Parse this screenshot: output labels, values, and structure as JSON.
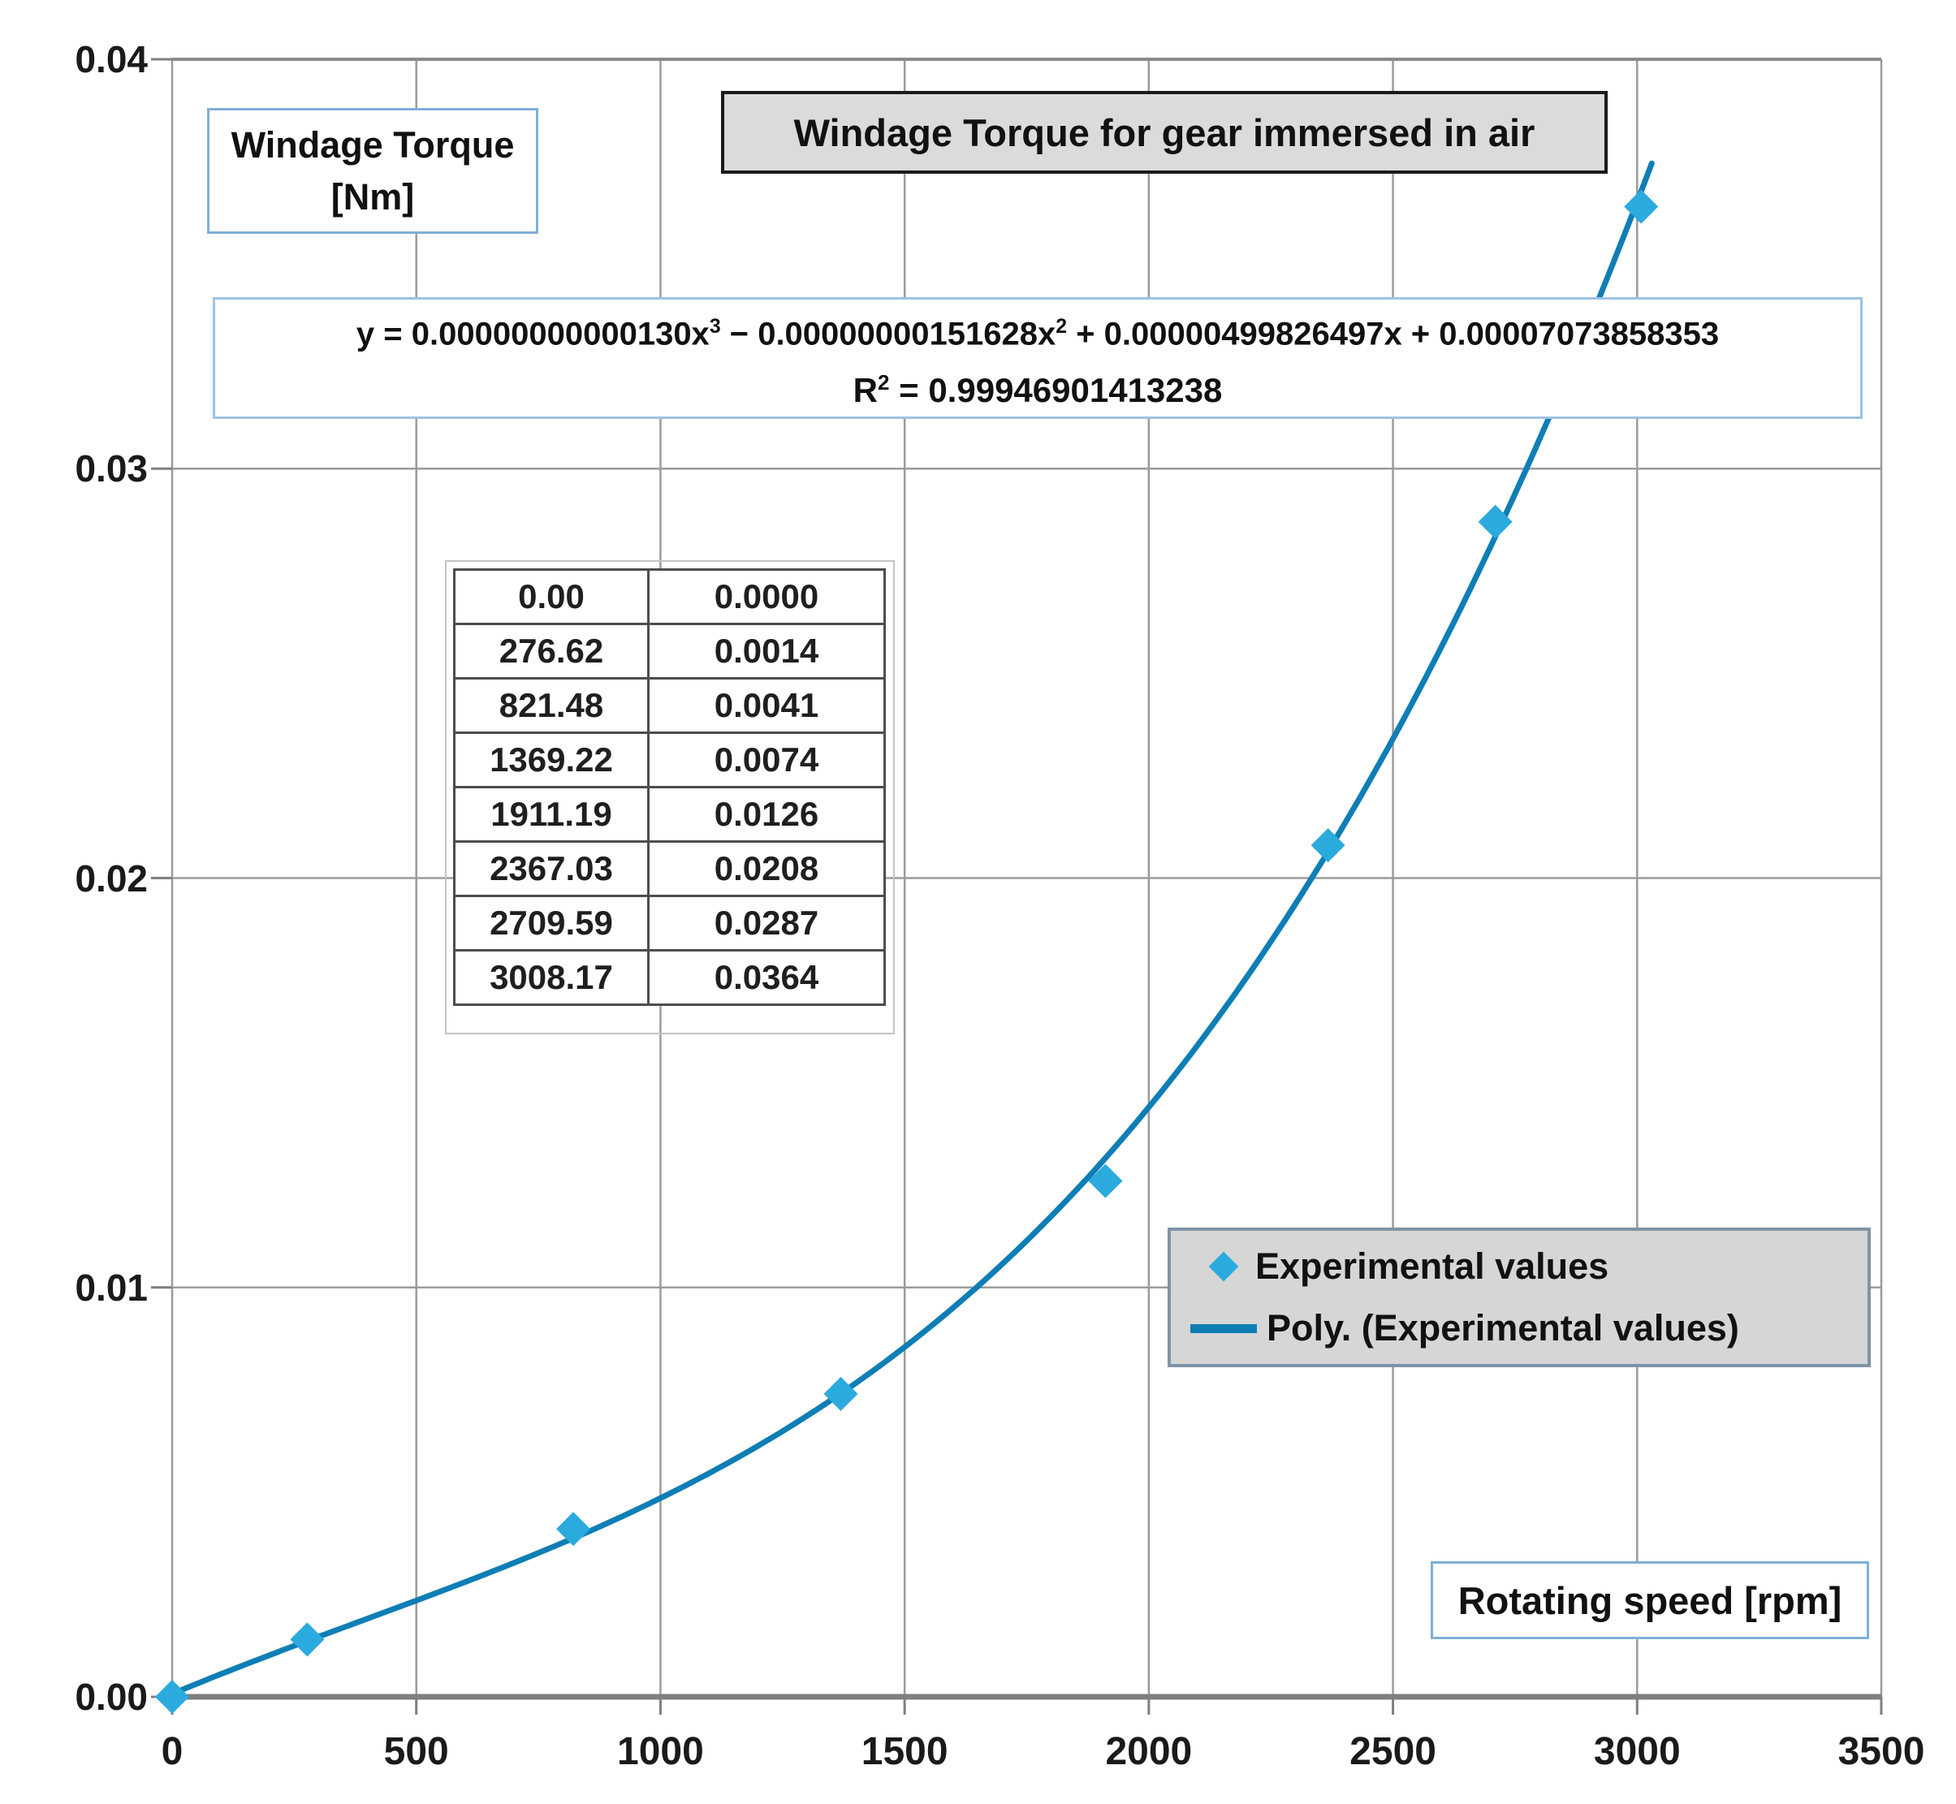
{
  "chart_data": {
    "type": "scatter",
    "title": "Windage Torque for gear immersed in air",
    "ylabel_line1": "Windage Torque",
    "ylabel_line2": "[Nm]",
    "xlabel": "Rotating speed  [rpm]",
    "xlim": [
      0,
      3500
    ],
    "ylim": [
      0,
      0.04
    ],
    "x_ticks": [
      "0",
      "500",
      "1000",
      "1500",
      "2000",
      "2500",
      "3000",
      "3500"
    ],
    "y_ticks": [
      "0.00",
      "0.01",
      "0.02",
      "0.03",
      "0.04"
    ],
    "grid": "both",
    "legend_position": "inside-right",
    "series": [
      {
        "name": "Experimental values",
        "type": "scatter",
        "marker": "diamond",
        "color": "#2BAADE",
        "x": [
          0,
          276.62,
          821.48,
          1369.22,
          1911.19,
          2367.03,
          2709.59,
          3008.17
        ],
        "y": [
          0.0,
          0.0014,
          0.0041,
          0.0074,
          0.0126,
          0.0208,
          0.0287,
          0.0364
        ]
      },
      {
        "name": "Poly. (Experimental values)",
        "type": "line",
        "color": "#0E7EB5",
        "poly_coefficients": [
          1.3e-12,
          -1.51628e-09,
          4.99826497e-06,
          7.073858353e-05
        ],
        "x_range": [
          0,
          3030
        ]
      }
    ],
    "point_table_rows": [
      [
        "0.00",
        "0.0000"
      ],
      [
        "276.62",
        "0.0014"
      ],
      [
        "821.48",
        "0.0041"
      ],
      [
        "1369.22",
        "0.0074"
      ],
      [
        "1911.19",
        "0.0126"
      ],
      [
        "2367.03",
        "0.0208"
      ],
      [
        "2709.59",
        "0.0287"
      ],
      [
        "3008.17",
        "0.0364"
      ]
    ],
    "equation": {
      "lhs": "y = 0.00000000000130x",
      "sup1": "3",
      "mid1": " − 0.00000000151628x",
      "sup2": "2",
      "tail": " + 0.00000499826497x + 0.00007073858353",
      "r2_base": "R",
      "r2_sup": "2",
      "r2_rest": " = 0.99946901413238"
    },
    "colors": {
      "marker": "#2BAADE",
      "line": "#0E7EB5",
      "gridline": "#9B9B9B",
      "axis": "#7F7F7F",
      "top_border": "#8A8A8A"
    }
  }
}
